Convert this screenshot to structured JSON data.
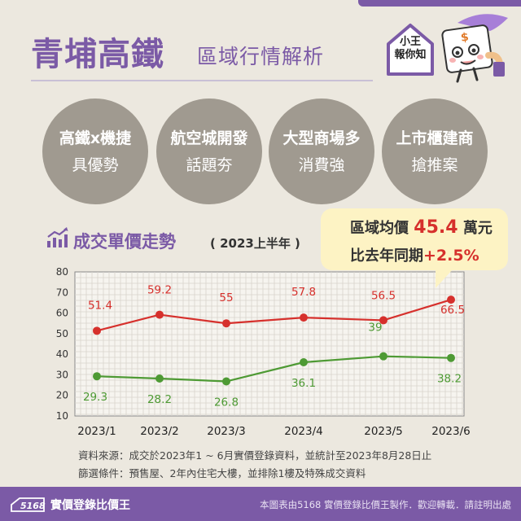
{
  "header": {
    "title": "青埔高鐵",
    "subtitle": "區域行情解析"
  },
  "mascot": {
    "line1": "小王",
    "line2": "報你知"
  },
  "circles": [
    {
      "l1": "高鐵x機捷",
      "l2": "具優勢"
    },
    {
      "l1": "航空城開發",
      "l2": "話題夯"
    },
    {
      "l1": "大型商場多",
      "l2": "消費強"
    },
    {
      "l1": "上市櫃建商",
      "l2": "搶推案"
    }
  ],
  "trend": {
    "title": "成交單價走勢",
    "period": "( 2023上半年 )"
  },
  "callout": {
    "l1_pre": "區域均價",
    "l1_value": "45.4",
    "l1_post": "萬元",
    "l2_pre": "比去年同期",
    "l2_value": "+2.5%"
  },
  "chart_data": {
    "type": "line",
    "categories": [
      "2023/1",
      "2023/2",
      "2023/3",
      "2023/4",
      "2023/5",
      "2023/6"
    ],
    "series": [
      {
        "values": [
          51.4,
          59.2,
          55,
          57.8,
          56.5,
          66.5
        ],
        "color": "#d6302c"
      },
      {
        "values": [
          29.3,
          28.2,
          26.8,
          36.1,
          39,
          38.2
        ],
        "color": "#4e9a34"
      }
    ],
    "yticks": [
      10,
      20,
      30,
      40,
      50,
      60,
      70,
      80
    ],
    "ylim": [
      10,
      80
    ],
    "grid": true
  },
  "source": {
    "line1": "資料來源：成交於2023年1 ~ 6月實價登錄資料，並統計至2023年8月28日止",
    "line2": "篩選條件：預售屋、2年內住宅大樓，並排除1樓及特殊成交資料"
  },
  "footer": {
    "logo": "5168",
    "name": "實價登錄比價王",
    "note": "本圖表由5168 實價登錄比價王製作．歡迎轉載．請註明出處"
  }
}
